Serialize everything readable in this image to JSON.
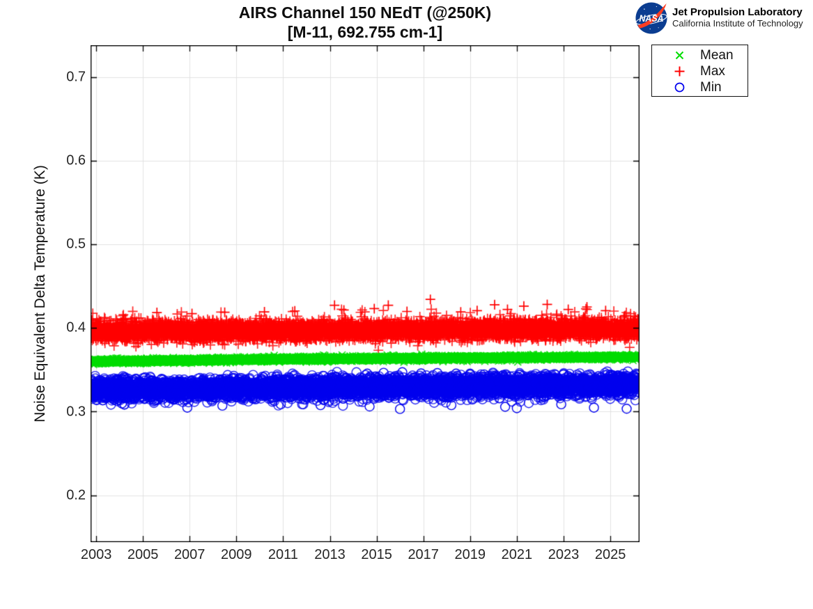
{
  "logo": {
    "org": "NASA",
    "line1": "Jet Propulsion Laboratory",
    "line2": "California Institute of Technology",
    "meatball_blue": "#0B3D91",
    "swoosh_red": "#FC3D21"
  },
  "chart_data": {
    "type": "scatter",
    "title": "AIRS Channel 150 NEdT (@250K)",
    "subtitle": "[M-11, 692.755 cm-1]",
    "xlabel": "",
    "ylabel": "Noise Equivalent Delta Temperature (K)",
    "xlim": [
      2002.76,
      2026.25
    ],
    "ylim": [
      0.144,
      0.738
    ],
    "xticks": [
      2003,
      2005,
      2007,
      2009,
      2011,
      2013,
      2015,
      2017,
      2019,
      2021,
      2023,
      2025
    ],
    "xtick_labels": [
      "2003",
      "2005",
      "2007",
      "2009",
      "2011",
      "2013",
      "2015",
      "2017",
      "2019",
      "2021",
      "2023",
      "2025"
    ],
    "yticks": [
      0.2,
      0.3,
      0.4,
      0.5,
      0.6,
      0.7
    ],
    "ytick_labels": [
      "0.2",
      "0.3",
      "0.4",
      "0.5",
      "0.6",
      "0.7"
    ],
    "grid": true,
    "grid_color": "#E2E2E2",
    "axis_color": "#000000",
    "tick_label_color": "#262626",
    "legend": {
      "position": "outside-top-right",
      "entries": [
        {
          "label": "Mean",
          "marker": "x",
          "color": "#00DD00"
        },
        {
          "label": "Max",
          "marker": "+",
          "color": "#FF0000"
        },
        {
          "label": "Min",
          "marker": "o",
          "color": "#0000EE"
        }
      ]
    },
    "series": [
      {
        "name": "Max",
        "marker": "+",
        "color": "#FF0000",
        "seed": 7,
        "n": 7000,
        "t_start": 2002.78,
        "t_end": 2026.2,
        "trend": {
          "t": [
            2002.78,
            2026.2
          ],
          "v": [
            0.3958,
            0.3987
          ]
        },
        "sigma": 0.0052,
        "tail_up": {
          "p": 0.1,
          "mean": 0.0045,
          "cap": 0.02
        },
        "tail_down": {
          "p": 0.05,
          "mean": 0.0028,
          "cap": 0.008
        },
        "outliers": [
          [
            2005.6,
            0.4185
          ],
          [
            2007.1,
            0.4172
          ],
          [
            2008.5,
            0.4188
          ],
          [
            2010.2,
            0.4193
          ],
          [
            2011.5,
            0.4204
          ],
          [
            2013.2,
            0.4272
          ],
          [
            2013.6,
            0.4215
          ],
          [
            2014.9,
            0.4232
          ],
          [
            2015.5,
            0.4272
          ],
          [
            2016.3,
            0.4198
          ],
          [
            2017.3,
            0.4342
          ],
          [
            2018.6,
            0.4192
          ],
          [
            2019.3,
            0.4208
          ],
          [
            2020.05,
            0.4278
          ],
          [
            2020.6,
            0.4222
          ],
          [
            2021.3,
            0.4262
          ],
          [
            2022.3,
            0.4282
          ],
          [
            2023.2,
            0.4222
          ],
          [
            2024.0,
            0.4252
          ],
          [
            2024.8,
            0.4208
          ],
          [
            2025.6,
            0.4142
          ]
        ]
      },
      {
        "name": "Mean",
        "marker": "x",
        "color": "#00DD00",
        "seed": 11,
        "n": 7000,
        "t_start": 2002.78,
        "t_end": 2026.2,
        "trend": {
          "t": [
            2002.78,
            2010,
            2018,
            2026.2
          ],
          "v": [
            0.36,
            0.3625,
            0.3642,
            0.3652
          ]
        },
        "sigma": 0.0012,
        "tail_up": {
          "p": 0.04,
          "mean": 0.0008,
          "cap": 0.0025
        },
        "tail_down": {
          "p": 0.04,
          "mean": 0.0008,
          "cap": 0.0025
        },
        "outliers": []
      },
      {
        "name": "Min",
        "marker": "o",
        "color": "#0000EE",
        "seed": 23,
        "n": 7000,
        "t_start": 2002.78,
        "t_end": 2026.2,
        "trend": {
          "t": [
            2002.78,
            2026.2
          ],
          "v": [
            0.3262,
            0.3322
          ]
        },
        "sigma": 0.0056,
        "tail_up": {
          "p": 0.02,
          "mean": 0.0018,
          "cap": 0.0055
        },
        "tail_down": {
          "p": 0.07,
          "mean": 0.0038,
          "cap": 0.014
        },
        "outliers": [
          [
            2004.1,
            0.3098
          ],
          [
            2006.9,
            0.3048
          ],
          [
            2008.4,
            0.3072
          ],
          [
            2010.9,
            0.3088
          ],
          [
            2012.6,
            0.3078
          ],
          [
            2014.7,
            0.3062
          ],
          [
            2016.0,
            0.3032
          ],
          [
            2018.2,
            0.3078
          ],
          [
            2020.5,
            0.3058
          ],
          [
            2021.0,
            0.3042
          ],
          [
            2022.9,
            0.3088
          ],
          [
            2024.3,
            0.3048
          ],
          [
            2025.7,
            0.3035
          ],
          [
            2014.6,
            0.3455
          ],
          [
            2015.3,
            0.3465
          ],
          [
            2016.1,
            0.3472
          ],
          [
            2016.9,
            0.3458
          ],
          [
            2017.6,
            0.3462
          ],
          [
            2018.4,
            0.3455
          ],
          [
            2019.6,
            0.3446
          ],
          [
            2021.1,
            0.3442
          ],
          [
            2023.0,
            0.3446
          ]
        ]
      }
    ]
  }
}
